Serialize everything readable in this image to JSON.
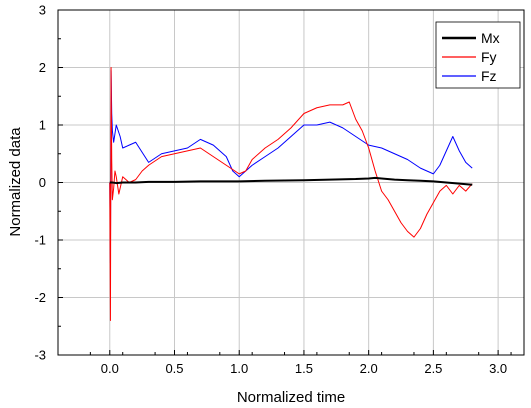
{
  "chart_data": {
    "type": "line",
    "xlabel": "Normalized time",
    "ylabel": "Normalized data",
    "xlim": [
      -0.4,
      3.2
    ],
    "ylim": [
      -3,
      3
    ],
    "x_ticks": [
      "0.0",
      "0.5",
      "1.0",
      "1.5",
      "2.0",
      "2.5",
      "3.0"
    ],
    "x_tick_values": [
      0,
      0.5,
      1.0,
      1.5,
      2.0,
      2.5,
      3.0
    ],
    "y_ticks": [
      "-3",
      "-2",
      "-1",
      "0",
      "1",
      "2",
      "3"
    ],
    "y_tick_values": [
      -3,
      -2,
      -1,
      0,
      1,
      2,
      3
    ],
    "grid": true,
    "legend_position": "top-right",
    "series": [
      {
        "name": "Mx",
        "color": "#000000",
        "width": 2,
        "x": [
          0.0,
          0.02,
          0.05,
          0.1,
          0.2,
          0.3,
          0.5,
          0.7,
          1.0,
          1.2,
          1.5,
          1.7,
          1.9,
          2.0,
          2.05,
          2.1,
          2.2,
          2.3,
          2.4,
          2.5,
          2.6,
          2.7,
          2.8
        ],
        "y": [
          0.0,
          0.0,
          -0.01,
          0.0,
          0.0,
          0.01,
          0.01,
          0.02,
          0.02,
          0.03,
          0.04,
          0.05,
          0.06,
          0.07,
          0.08,
          0.07,
          0.05,
          0.04,
          0.03,
          0.02,
          0.0,
          -0.02,
          -0.04
        ]
      },
      {
        "name": "Fy",
        "color": "#ff0000",
        "width": 1,
        "x": [
          0.0,
          0.005,
          0.01,
          0.015,
          0.02,
          0.03,
          0.04,
          0.05,
          0.07,
          0.1,
          0.15,
          0.2,
          0.25,
          0.3,
          0.4,
          0.5,
          0.6,
          0.7,
          0.8,
          0.9,
          1.0,
          1.05,
          1.1,
          1.2,
          1.3,
          1.4,
          1.5,
          1.6,
          1.7,
          1.8,
          1.85,
          1.9,
          1.95,
          2.0,
          2.05,
          2.1,
          2.15,
          2.2,
          2.25,
          2.3,
          2.35,
          2.4,
          2.45,
          2.5,
          2.55,
          2.6,
          2.65,
          2.7,
          2.75,
          2.8
        ],
        "y": [
          0.0,
          -2.4,
          2.0,
          0.4,
          -0.3,
          -0.1,
          0.2,
          0.1,
          -0.2,
          0.1,
          0.0,
          0.05,
          0.2,
          0.3,
          0.45,
          0.5,
          0.55,
          0.6,
          0.45,
          0.3,
          0.15,
          0.2,
          0.4,
          0.6,
          0.75,
          0.95,
          1.2,
          1.3,
          1.35,
          1.35,
          1.4,
          1.1,
          0.9,
          0.6,
          0.2,
          -0.15,
          -0.3,
          -0.5,
          -0.7,
          -0.85,
          -0.95,
          -0.8,
          -0.55,
          -0.35,
          -0.15,
          -0.05,
          -0.2,
          -0.05,
          -0.15,
          -0.02
        ]
      },
      {
        "name": "Fz",
        "color": "#0000ff",
        "width": 1,
        "x": [
          0.0,
          0.005,
          0.01,
          0.015,
          0.02,
          0.03,
          0.05,
          0.08,
          0.1,
          0.15,
          0.2,
          0.3,
          0.4,
          0.5,
          0.6,
          0.7,
          0.8,
          0.9,
          0.95,
          1.0,
          1.1,
          1.2,
          1.3,
          1.4,
          1.5,
          1.6,
          1.7,
          1.8,
          1.9,
          2.0,
          2.1,
          2.2,
          2.3,
          2.4,
          2.5,
          2.55,
          2.6,
          2.65,
          2.7,
          2.75,
          2.8
        ],
        "y": [
          0.0,
          -1.4,
          1.95,
          1.2,
          0.9,
          0.7,
          1.0,
          0.8,
          0.6,
          0.65,
          0.7,
          0.35,
          0.5,
          0.55,
          0.6,
          0.75,
          0.65,
          0.45,
          0.2,
          0.1,
          0.3,
          0.45,
          0.6,
          0.8,
          1.0,
          1.0,
          1.05,
          0.95,
          0.8,
          0.65,
          0.6,
          0.5,
          0.4,
          0.25,
          0.15,
          0.3,
          0.55,
          0.8,
          0.55,
          0.35,
          0.25
        ]
      }
    ]
  }
}
